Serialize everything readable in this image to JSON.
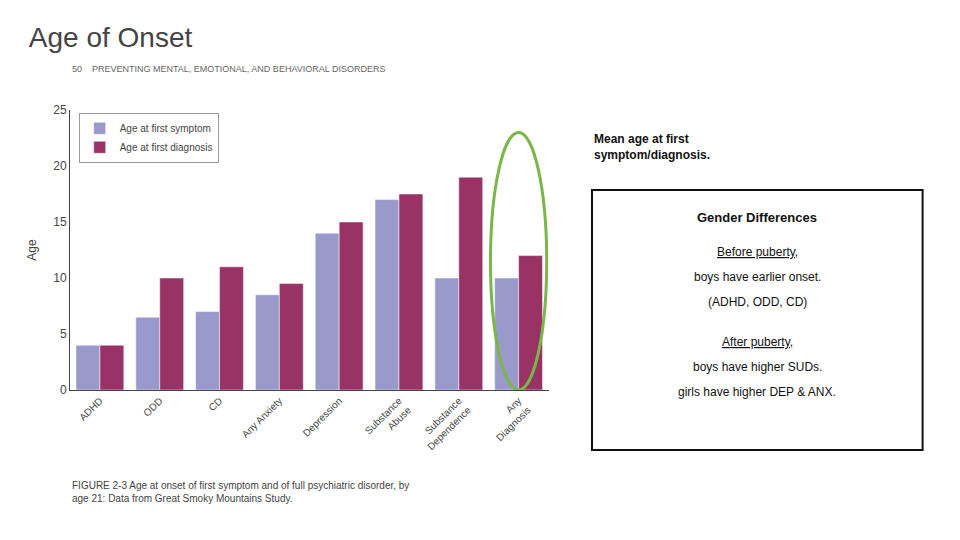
{
  "chart_data": {
    "type": "bar",
    "title": "Age of Onset",
    "header": "50    PREVENTING MENTAL, EMOTIONAL, AND BEHAVIORAL DISORDERS",
    "categories": [
      "ADHD",
      "ODD",
      "CD",
      "Any Anxiety",
      "Depression",
      "Substance\nAbuse",
      "Substance\nDependence",
      "Any\nDiagnosis"
    ],
    "series": [
      {
        "name": "Age at first symptom",
        "color": "#9999cc",
        "values": [
          4.0,
          6.5,
          7.0,
          8.5,
          14.0,
          17.0,
          10.0,
          10.0
        ]
      },
      {
        "name": "Age at first diagnosis",
        "color": "#993366",
        "values": [
          4.0,
          10.0,
          11.0,
          9.5,
          15.0,
          17.5,
          19.0,
          12.0
        ]
      }
    ],
    "ylabel": "Age",
    "ylim": [
      0,
      25
    ],
    "yticks": [
      0,
      5,
      10,
      15,
      20,
      25
    ],
    "grid": false,
    "legend": "upper left",
    "highlight": {
      "category": "Any\nDiagnosis",
      "color": "#7ab648"
    },
    "annotations": [
      "Mean age at first\nsymptom/diagnosis."
    ],
    "text_box": {
      "title": "Gender Differences",
      "lines": [
        "Before puberty,",
        "boys have earlier onset.",
        "(ADHD, ODD, CD)",
        "After puberty,",
        "boys have higher SUDs.",
        "girls have higher DEP & ANX."
      ],
      "underlined": [
        "Before puberty,",
        "After puberty,"
      ]
    },
    "caption": "FIGURE 2-3 Age at onset of first symptom and of full psychiatric disorder, by\nage 21: Data from Great Smoky Mountains Study."
  }
}
